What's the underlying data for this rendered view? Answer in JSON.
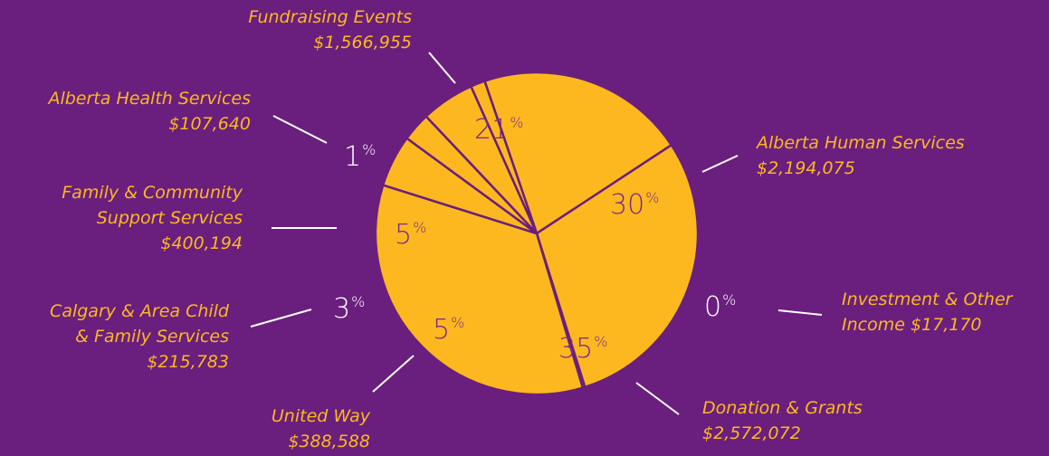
{
  "colors": {
    "background": "#6A1F7E",
    "slice": "#FDB81F",
    "divider": "#6A1F7E",
    "leader": "#FFFFFF",
    "label": "#FDB81F"
  },
  "chart_data": {
    "type": "pie",
    "title": "",
    "percent_symbol": "%",
    "slices": [
      {
        "name": "Fundraising Events",
        "amount": "$1,566,955",
        "value": 1566955,
        "percent": "21"
      },
      {
        "name": "Alberta Human Services",
        "amount": "$2,194,075",
        "value": 2194075,
        "percent": "30"
      },
      {
        "name": "Investment & Other Income",
        "amount": "$17,170",
        "value": 17170,
        "percent": "0"
      },
      {
        "name": "Donation & Grants",
        "amount": "$2,572,072",
        "value": 2572072,
        "percent": "35"
      },
      {
        "name": "United Way",
        "amount": "$388,588",
        "value": 388588,
        "percent": "5"
      },
      {
        "name": "Calgary & Area Child & Family Services",
        "amount": "$215,783",
        "value": 215783,
        "percent": "3"
      },
      {
        "name": "Family & Community Support Services",
        "amount": "$400,194",
        "value": 400194,
        "percent": "5"
      },
      {
        "name": "Alberta Health Services",
        "amount": "$107,640",
        "value": 107640,
        "percent": "1"
      }
    ]
  },
  "labels": {
    "fundraising": {
      "line1": "Fundraising Events",
      "line2": "$1,566,955"
    },
    "human_services": {
      "line1": "Alberta Human Services",
      "line2": "$2,194,075"
    },
    "investment": {
      "line1": "Investment & Other",
      "line2": "Income $17,170"
    },
    "donation": {
      "line1": "Donation & Grants",
      "line2": "$2,572,072"
    },
    "united_way": {
      "line1": "United Way",
      "line2": "$388,588"
    },
    "calgary": {
      "line1": "Calgary & Area Child",
      "line2": "& Family Services",
      "line3": "$215,783"
    },
    "fcss": {
      "line1": "Family & Community",
      "line2": "Support Services",
      "line3": "$400,194"
    },
    "health": {
      "line1": "Alberta Health Services",
      "line2": "$107,640"
    }
  }
}
